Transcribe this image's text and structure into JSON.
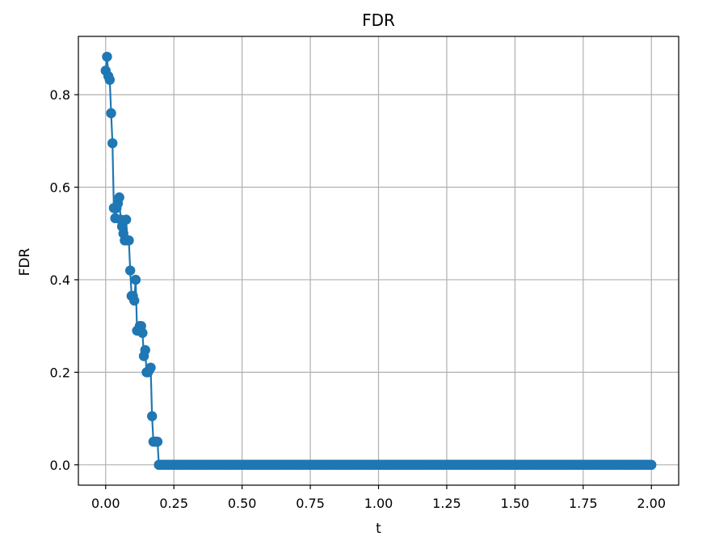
{
  "chart_data": {
    "type": "line",
    "title": "FDR",
    "xlabel": "t",
    "ylabel": "FDR",
    "xlim": [
      -0.1,
      2.1
    ],
    "ylim": [
      -0.044,
      0.926
    ],
    "xticks": [
      "0.00",
      "0.25",
      "0.50",
      "0.75",
      "1.00",
      "1.25",
      "1.50",
      "1.75",
      "2.00"
    ],
    "yticks": [
      "0.0",
      "0.2",
      "0.4",
      "0.6",
      "0.8"
    ],
    "grid": true,
    "color": "#1f77b4",
    "marker": "circle",
    "series": [
      {
        "x": [
          0.0,
          0.005,
          0.01,
          0.015,
          0.02,
          0.025,
          0.03,
          0.035,
          0.04,
          0.045,
          0.05,
          0.055,
          0.06,
          0.065,
          0.07,
          0.075,
          0.08,
          0.085,
          0.09,
          0.095,
          0.1,
          0.105,
          0.11,
          0.115,
          0.12,
          0.125,
          0.13,
          0.135,
          0.14,
          0.145,
          0.15,
          0.155,
          0.16,
          0.165,
          0.17,
          0.175,
          0.18,
          0.185,
          0.19,
          0.195,
          0.2,
          0.205
        ],
        "y": [
          0.852,
          0.882,
          0.84,
          0.832,
          0.76,
          0.695,
          0.555,
          0.533,
          0.555,
          0.565,
          0.578,
          0.53,
          0.515,
          0.5,
          0.485,
          0.53,
          0.485,
          0.485,
          0.42,
          0.365,
          0.365,
          0.355,
          0.4,
          0.29,
          0.29,
          0.3,
          0.3,
          0.285,
          0.235,
          0.248,
          0.2,
          0.2,
          0.205,
          0.21,
          0.105,
          0.05,
          0.05,
          0.05,
          0.05,
          0.0,
          0.0,
          0.0
        ]
      }
    ],
    "flat_tail": {
      "x_start": 0.21,
      "x_end": 2.0,
      "step": 0.005,
      "y": 0.0
    }
  }
}
